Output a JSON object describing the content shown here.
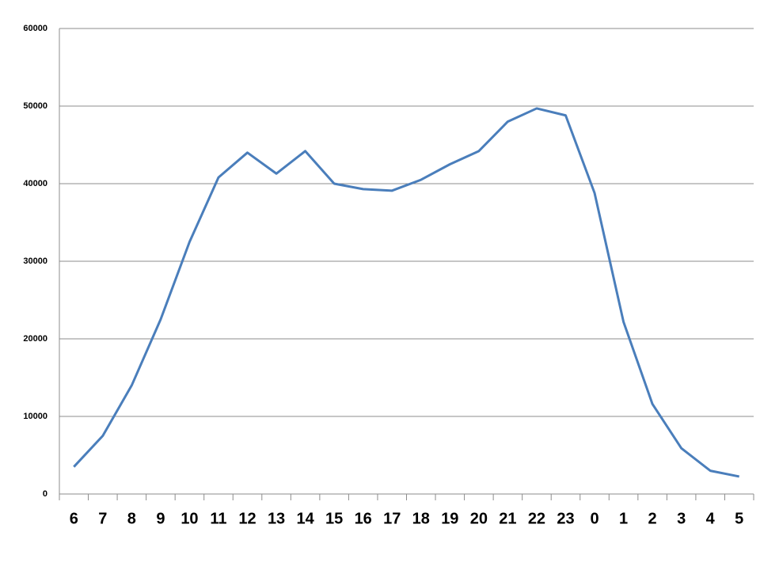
{
  "chart_data": {
    "type": "line",
    "categories": [
      "6",
      "7",
      "8",
      "9",
      "10",
      "11",
      "12",
      "13",
      "14",
      "15",
      "16",
      "17",
      "18",
      "19",
      "20",
      "21",
      "22",
      "23",
      "0",
      "1",
      "2",
      "3",
      "4",
      "5"
    ],
    "series": [
      {
        "color": "#4a7ebb",
        "values": [
          3500,
          7500,
          14000,
          22500,
          32500,
          40800,
          44000,
          41300,
          44200,
          40000,
          39300,
          39100,
          40500,
          42500,
          44200,
          48000,
          49700,
          48800,
          38800,
          22200,
          11600,
          5900,
          3000,
          2250
        ]
      }
    ],
    "ylim": [
      0,
      60000
    ],
    "yticks": [
      0,
      10000,
      20000,
      30000,
      40000,
      50000,
      60000
    ],
    "grid": true
  }
}
